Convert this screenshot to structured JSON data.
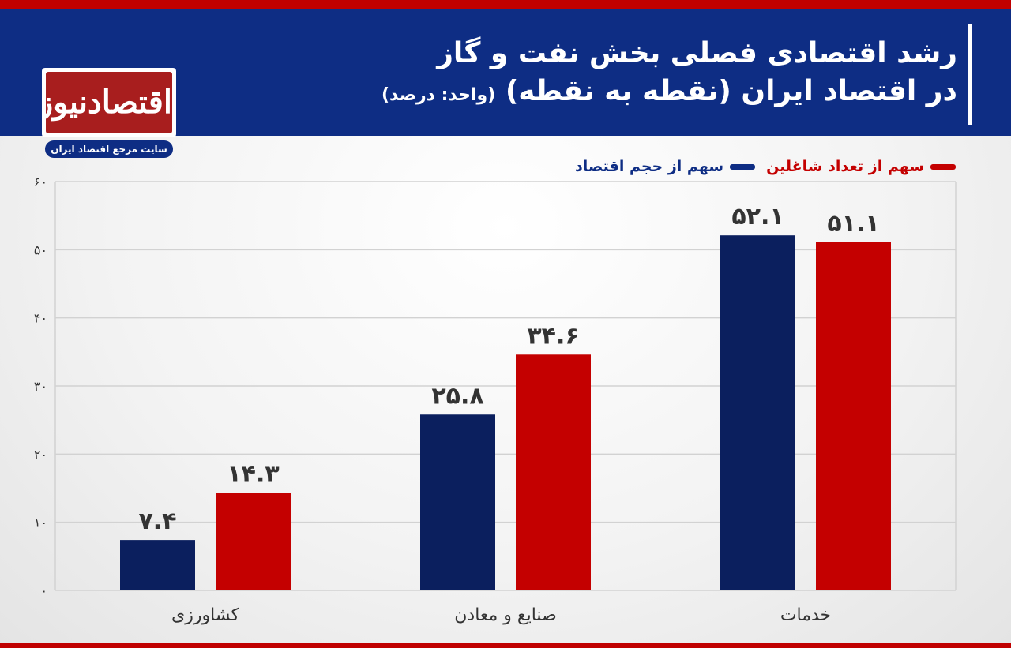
{
  "header": {
    "title_line1": "رشد اقتصادی فصلی بخش نفت و گاز",
    "title_line2": "در اقتصاد ایران (نقطه به نقطه)",
    "unit": "(واحد: درصد)"
  },
  "logo": {
    "name": "اقتصادنیوز",
    "tagline": "سایت مرجع اقتصاد ایران"
  },
  "colors": {
    "header_bg": "#0e2d84",
    "accent_red": "#c00000",
    "series_navy": "#0b1f5e",
    "series_red": "#c40000",
    "grid": "#d2d2d2"
  },
  "chart_data": {
    "type": "bar",
    "categories": [
      "کشاورزی",
      "صنایع و معادن",
      "خدمات"
    ],
    "series": [
      {
        "name": "سهم از حجم اقتصاد",
        "color": "#0b1f5e",
        "values": [
          7.4,
          25.8,
          52.1
        ],
        "value_labels": [
          "۷.۴",
          "۲۵.۸",
          "۵۲.۱"
        ]
      },
      {
        "name": "سهم از تعداد شاغلین",
        "color": "#c40000",
        "values": [
          14.3,
          34.6,
          51.1
        ],
        "value_labels": [
          "۱۴.۳",
          "۳۴.۶",
          "۵۱.۱"
        ]
      }
    ],
    "ylim": [
      0,
      60
    ],
    "yticks": [
      0,
      10,
      20,
      30,
      40,
      50,
      60
    ],
    "ytick_labels": [
      "۰",
      "۱۰",
      "۲۰",
      "۳۰",
      "۴۰",
      "۵۰",
      "۶۰"
    ],
    "grid": true,
    "legend_position": "top-right"
  }
}
